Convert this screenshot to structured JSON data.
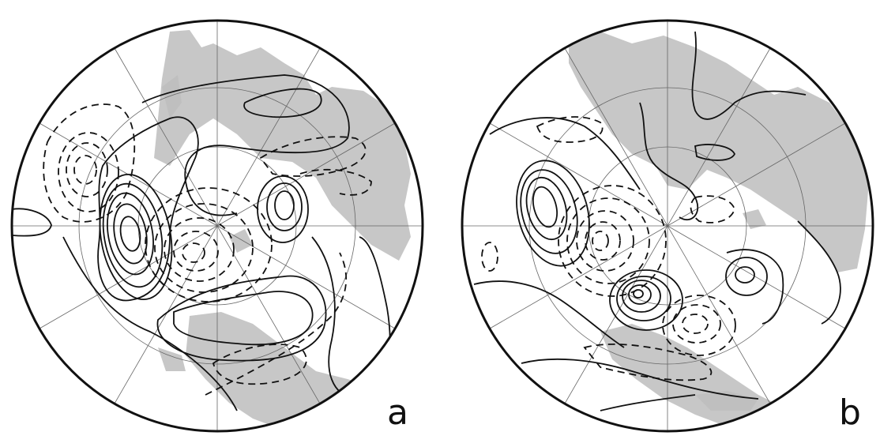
{
  "figure": {
    "panels": [
      {
        "id": "a",
        "label": "a"
      },
      {
        "id": "b",
        "label": "b"
      }
    ],
    "styles": {
      "positive_contours": "solid",
      "negative_contours": "dashed",
      "land_color": "#bdbdbd"
    }
  }
}
